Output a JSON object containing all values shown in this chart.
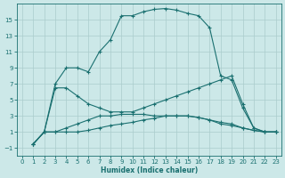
{
  "xlabel": "Humidex (Indice chaleur)",
  "bg_color": "#cce8e8",
  "grid_color": "#aacccc",
  "line_color": "#1a7070",
  "xlim": [
    -0.5,
    23.5
  ],
  "ylim": [
    -2.0,
    17.0
  ],
  "xticks": [
    0,
    1,
    2,
    3,
    4,
    5,
    6,
    7,
    8,
    9,
    10,
    11,
    12,
    13,
    14,
    15,
    16,
    17,
    18,
    19,
    20,
    21,
    22,
    23
  ],
  "yticks": [
    -1,
    1,
    3,
    5,
    7,
    9,
    11,
    13,
    15
  ],
  "curve1_x": [
    1,
    2,
    3,
    4,
    5,
    6,
    7,
    8,
    9,
    10,
    11,
    12,
    13,
    14,
    15,
    16,
    17,
    18,
    19,
    20,
    21,
    22,
    23
  ],
  "curve1_y": [
    -0.5,
    1.0,
    7.0,
    9.0,
    9.0,
    8.5,
    11.0,
    12.5,
    15.5,
    15.5,
    16.0,
    16.3,
    16.4,
    16.2,
    15.8,
    15.5,
    14.0,
    8.0,
    7.5,
    4.0,
    1.5,
    1.0,
    1.0
  ],
  "curve2_x": [
    1,
    2,
    3,
    4,
    5,
    6,
    7,
    8,
    9,
    10,
    11,
    12,
    13,
    14,
    15,
    16,
    17,
    18,
    19,
    20,
    21,
    22,
    23
  ],
  "curve2_y": [
    -0.5,
    1.0,
    6.5,
    6.5,
    5.5,
    4.5,
    4.0,
    3.5,
    3.5,
    3.5,
    4.0,
    4.5,
    5.0,
    5.5,
    6.0,
    6.5,
    7.0,
    7.5,
    8.0,
    4.5,
    1.5,
    1.0,
    1.0
  ],
  "curve3_x": [
    1,
    2,
    3,
    4,
    5,
    6,
    7,
    8,
    9,
    10,
    11,
    12,
    13,
    14,
    15,
    16,
    17,
    18,
    19,
    20,
    21,
    22,
    23
  ],
  "curve3_y": [
    -0.5,
    1.0,
    1.0,
    1.5,
    2.0,
    2.5,
    3.0,
    3.0,
    3.2,
    3.2,
    3.2,
    3.0,
    3.0,
    3.0,
    3.0,
    2.8,
    2.5,
    2.2,
    2.0,
    1.5,
    1.2,
    1.0,
    1.0
  ],
  "curve4_x": [
    1,
    2,
    3,
    4,
    5,
    6,
    7,
    8,
    9,
    10,
    11,
    12,
    13,
    14,
    15,
    16,
    17,
    18,
    19,
    20,
    21,
    22,
    23
  ],
  "curve4_y": [
    -0.5,
    1.0,
    1.0,
    1.0,
    1.0,
    1.2,
    1.5,
    1.8,
    2.0,
    2.2,
    2.5,
    2.7,
    3.0,
    3.0,
    3.0,
    2.8,
    2.5,
    2.0,
    1.8,
    1.5,
    1.2,
    1.0,
    1.0
  ]
}
